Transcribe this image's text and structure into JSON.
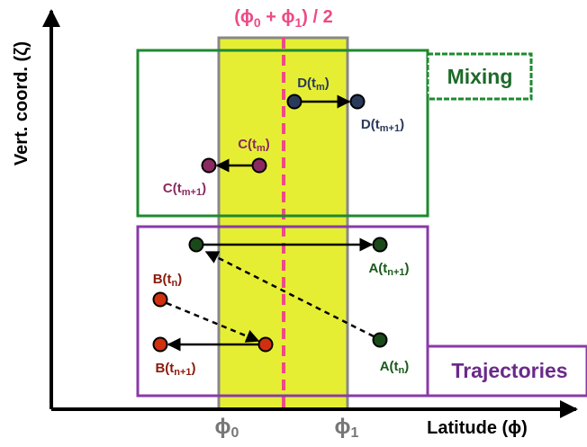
{
  "title": [
    "(ϕ",
    "0",
    " + ϕ",
    "1",
    ") / 2"
  ],
  "y_axis_label": "Vert. coord. (ζ)",
  "x_axis_label": "Latitude (ϕ)",
  "x_ticks": [
    [
      "ϕ",
      "0"
    ],
    [
      "ϕ",
      "1"
    ]
  ],
  "boxes": [
    {
      "label": "Mixing"
    },
    {
      "label": "Trajectories"
    }
  ],
  "points": [
    {
      "label": [
        "D(t",
        "m",
        ")"
      ]
    },
    {
      "label": [
        "D(t",
        "m+1",
        ")"
      ]
    },
    {
      "label": [
        "C(t",
        "m",
        ")"
      ]
    },
    {
      "label": [
        "C(t",
        "m+1",
        ")"
      ]
    },
    {
      "label": [
        "A(t",
        "n+1",
        ")"
      ]
    },
    {
      "label": [
        "A(t",
        "n",
        ")"
      ]
    },
    {
      "label": [
        "B(t",
        "n",
        ")"
      ]
    },
    {
      "label": [
        "B(t",
        "n+1",
        ")"
      ]
    }
  ]
}
